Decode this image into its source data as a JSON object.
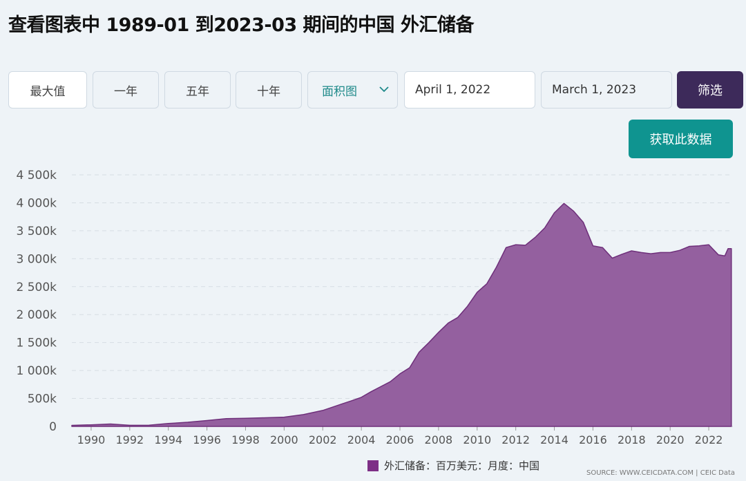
{
  "page_title": "查看图表中 1989-01 到2023-03 期间的中国 外汇储备",
  "toolbar": {
    "range_buttons": [
      "最大值",
      "一年",
      "五年",
      "十年"
    ],
    "chart_type_select": "面积图",
    "start_date": "April 1, 2022",
    "end_date": "March 1, 2023",
    "filter_label": "筛选",
    "get_data_label": "获取此数据"
  },
  "colors": {
    "area_fill": "#94609f",
    "area_line": "#6e2f7a",
    "legend_swatch": "#7d2f86",
    "filter_btn": "#3d2a5a",
    "get_data_btn": "#0f9490"
  },
  "chart_data": {
    "type": "area",
    "title": "",
    "xlabel": "",
    "ylabel": "",
    "xlim": [
      1989,
      2023.25
    ],
    "ylim": [
      0,
      4500000
    ],
    "y_ticks": [
      0,
      500000,
      1000000,
      1500000,
      2000000,
      2500000,
      3000000,
      3500000,
      4000000,
      4500000
    ],
    "y_tick_labels": [
      "0",
      "500k",
      "1 000k",
      "1 500k",
      "2 000k",
      "2 500k",
      "3 000k",
      "3 500k",
      "4 000k",
      "4 500k"
    ],
    "x_ticks": [
      1990,
      1992,
      1994,
      1996,
      1998,
      2000,
      2002,
      2004,
      2006,
      2008,
      2010,
      2012,
      2014,
      2016,
      2018,
      2020,
      2022
    ],
    "x_tick_labels": [
      "1990",
      "1992",
      "1994",
      "1996",
      "1998",
      "2000",
      "2002",
      "2004",
      "2006",
      "2008",
      "2010",
      "2012",
      "2014",
      "2016",
      "2018",
      "2020",
      "2022"
    ],
    "grid": true,
    "legend_position": "bottom",
    "series": [
      {
        "name": "外汇储备：百万美元：月度：中国",
        "x": [
          1989.0,
          1990.0,
          1991.0,
          1992.0,
          1993.0,
          1994.0,
          1995.0,
          1996.0,
          1997.0,
          1998.0,
          1999.0,
          2000.0,
          2001.0,
          2002.0,
          2003.0,
          2003.5,
          2004.0,
          2004.5,
          2005.0,
          2005.5,
          2006.0,
          2006.5,
          2007.0,
          2007.5,
          2008.0,
          2008.5,
          2009.0,
          2009.5,
          2010.0,
          2010.5,
          2011.0,
          2011.5,
          2012.0,
          2012.5,
          2013.0,
          2013.5,
          2014.0,
          2014.5,
          2015.0,
          2015.5,
          2016.0,
          2016.5,
          2017.0,
          2017.5,
          2018.0,
          2018.5,
          2019.0,
          2019.5,
          2020.0,
          2020.5,
          2021.0,
          2021.5,
          2022.0,
          2022.5,
          2022.83,
          2023.0,
          2023.17
        ],
        "values": [
          18000,
          28000,
          43000,
          20000,
          21000,
          52000,
          74000,
          105000,
          140000,
          145000,
          155000,
          166000,
          212000,
          286000,
          403000,
          460000,
          520000,
          620000,
          711000,
          800000,
          941000,
          1050000,
          1330000,
          1500000,
          1682000,
          1850000,
          1950000,
          2150000,
          2400000,
          2550000,
          2850000,
          3200000,
          3250000,
          3240000,
          3380000,
          3550000,
          3820000,
          3990000,
          3850000,
          3650000,
          3230000,
          3200000,
          3010000,
          3080000,
          3140000,
          3110000,
          3090000,
          3110000,
          3110000,
          3150000,
          3220000,
          3230000,
          3250000,
          3070000,
          3050000,
          3180000,
          3180000
        ]
      }
    ]
  },
  "source": "SOURCE: WWW.CEICDATA.COM | CEIC Data"
}
